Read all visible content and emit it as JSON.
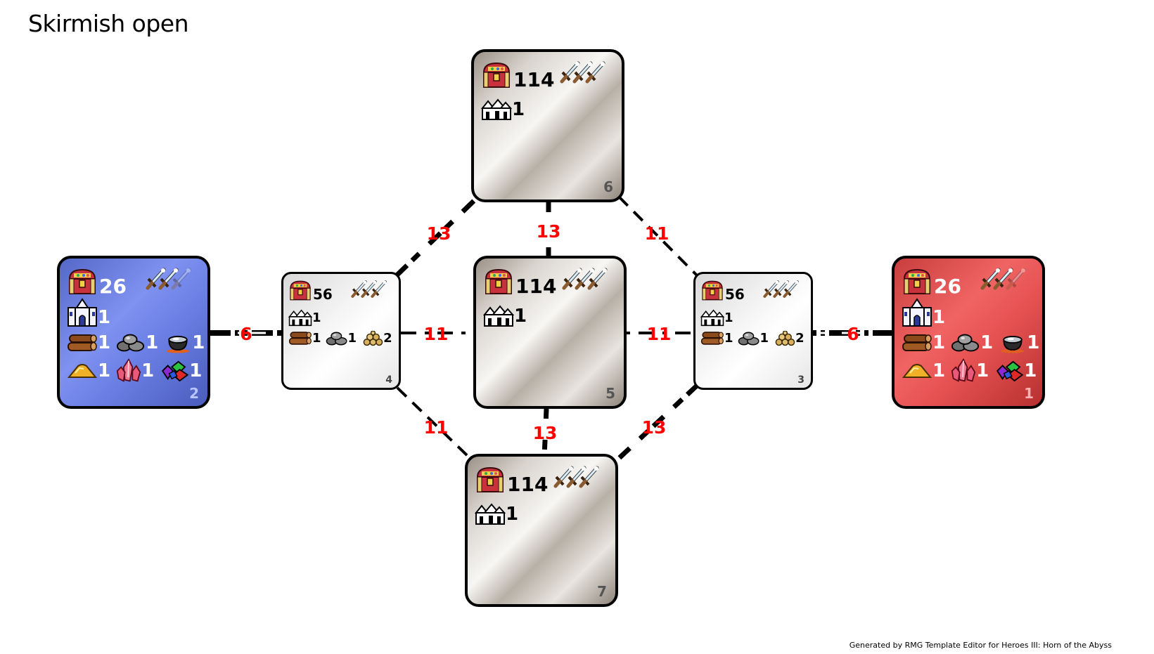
{
  "title": "Skirmish open",
  "credit": "Generated by RMG Template Editor for Heroes III: Horn of the Abyss",
  "zones": {
    "z6": {
      "id": "6",
      "treasure": "114",
      "towns": "1"
    },
    "z5": {
      "id": "5",
      "treasure": "114",
      "towns": "1"
    },
    "z7": {
      "id": "7",
      "treasure": "114",
      "towns": "1"
    },
    "z4": {
      "id": "4",
      "treasure": "56",
      "towns": "1",
      "wood": "1",
      "ore": "1",
      "gold": "2"
    },
    "z3": {
      "id": "3",
      "treasure": "56",
      "towns": "1",
      "wood": "1",
      "ore": "1",
      "gold": "2"
    },
    "z2": {
      "id": "2",
      "treasure": "26",
      "towns": "1",
      "wood": "1",
      "ore": "1",
      "mercury": "1",
      "sulfur": "1",
      "crystal": "1",
      "gems": "1"
    },
    "z1": {
      "id": "1",
      "treasure": "26",
      "towns": "1",
      "wood": "1",
      "ore": "1",
      "mercury": "1",
      "sulfur": "1",
      "crystal": "1",
      "gems": "1"
    }
  },
  "connections": {
    "c2_4": "6",
    "c4_5": "11",
    "c5_3": "11",
    "c3_1": "6",
    "c4_6": "13",
    "c6_5": "13",
    "c6_3": "11",
    "c4_7": "11",
    "c5_7": "13",
    "c3_7": "13"
  },
  "icons": [
    "treasure-chest-icon",
    "monster-swords-icon",
    "town-icon",
    "castle-icon",
    "wood-icon",
    "ore-icon",
    "mercury-icon",
    "sulfur-icon",
    "crystal-icon",
    "gems-icon",
    "gold-icon"
  ],
  "colors": {
    "label": "#ff0000",
    "player_blue": "#6b80e6",
    "player_red": "#e65252"
  }
}
